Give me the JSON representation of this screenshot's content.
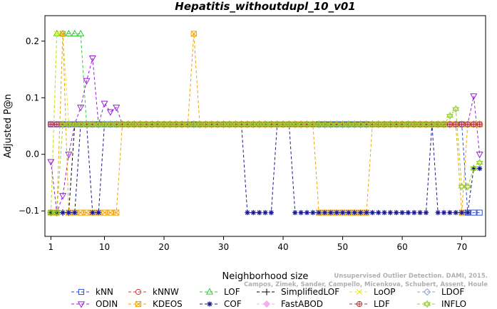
{
  "chart_data": {
    "type": "line",
    "title": "Hepatitis_withoutdupl_10_v01",
    "xlabel": "Neighborhood size",
    "ylabel": "Adjusted P@n",
    "xlim": [
      0,
      74
    ],
    "ylim": [
      -0.145,
      0.245
    ],
    "xticks": [
      1,
      10,
      20,
      30,
      40,
      50,
      60,
      70
    ],
    "yticks": [
      -0.1,
      0.0,
      0.1,
      0.2
    ],
    "ytick_labels": [
      "−0.1",
      "0.0",
      "0.1",
      "0.2"
    ],
    "grid": false,
    "legend_position": "bottom",
    "watermark": [
      "Campos, Zimek, Sander, Campello, Micenkova, Schubert, Assent, Houle",
      "Unsupervised Outlier Detection. DAMI, 2015."
    ],
    "series": [
      {
        "name": "kNN",
        "color": "#2b4bd6",
        "marker": "square",
        "points": [
          [
            1,
            0.053
          ],
          [
            2,
            0.053
          ],
          [
            3,
            0.053
          ],
          [
            4,
            0.053
          ],
          [
            5,
            0.053
          ],
          [
            10,
            0.053
          ],
          [
            20,
            0.053
          ],
          [
            30,
            0.053
          ],
          [
            40,
            0.053
          ],
          [
            50,
            0.053
          ],
          [
            60,
            0.053
          ],
          [
            69,
            0.053
          ],
          [
            70,
            0.053
          ],
          [
            71,
            -0.103
          ],
          [
            72,
            -0.103
          ],
          [
            73,
            -0.103
          ]
        ]
      },
      {
        "name": "kNNW",
        "color": "#d63a3a",
        "marker": "circle",
        "points": [
          [
            1,
            0.053
          ],
          [
            2,
            0.053
          ],
          [
            3,
            0.053
          ],
          [
            10,
            0.053
          ],
          [
            20,
            0.053
          ],
          [
            30,
            0.053
          ],
          [
            40,
            0.053
          ],
          [
            50,
            0.053
          ],
          [
            60,
            0.053
          ],
          [
            70,
            0.053
          ],
          [
            71,
            0.053
          ],
          [
            72,
            0.053
          ],
          [
            73,
            0.053
          ]
        ]
      },
      {
        "name": "LOF",
        "color": "#2ecc2e",
        "marker": "triangle-up",
        "points": [
          [
            1,
            -0.103
          ],
          [
            2,
            0.213
          ],
          [
            3,
            0.213
          ],
          [
            4,
            0.213
          ],
          [
            5,
            0.213
          ],
          [
            6,
            0.213
          ],
          [
            7,
            0.053
          ],
          [
            10,
            0.053
          ],
          [
            20,
            0.053
          ],
          [
            30,
            0.053
          ],
          [
            40,
            0.053
          ],
          [
            50,
            0.053
          ],
          [
            60,
            0.053
          ],
          [
            70,
            0.053
          ],
          [
            73,
            0.053
          ]
        ]
      },
      {
        "name": "SimplifiedLOF",
        "color": "#000000",
        "marker": "plus",
        "points": [
          [
            1,
            -0.103
          ],
          [
            2,
            -0.103
          ],
          [
            3,
            -0.103
          ],
          [
            4,
            -0.103
          ],
          [
            5,
            0.053
          ],
          [
            10,
            0.053
          ],
          [
            20,
            0.053
          ],
          [
            30,
            0.053
          ],
          [
            40,
            0.053
          ],
          [
            50,
            0.053
          ],
          [
            60,
            0.053
          ],
          [
            70,
            0.053
          ],
          [
            73,
            0.053
          ]
        ]
      },
      {
        "name": "LoOP",
        "color": "#e6e61a",
        "marker": "x",
        "points": [
          [
            1,
            -0.103
          ],
          [
            2,
            0.213
          ],
          [
            3,
            0.213
          ],
          [
            4,
            0.053
          ],
          [
            10,
            0.053
          ],
          [
            20,
            0.053
          ],
          [
            30,
            0.053
          ],
          [
            40,
            0.053
          ],
          [
            50,
            0.053
          ],
          [
            60,
            0.053
          ],
          [
            70,
            0.053
          ],
          [
            73,
            0.053
          ]
        ]
      },
      {
        "name": "LDOF",
        "color": "#8f9fd6",
        "marker": "diamond",
        "points": [
          [
            1,
            0.053
          ],
          [
            10,
            0.053
          ],
          [
            20,
            0.053
          ],
          [
            30,
            0.053
          ],
          [
            40,
            0.053
          ],
          [
            50,
            0.053
          ],
          [
            60,
            0.053
          ],
          [
            70,
            0.053
          ],
          [
            73,
            0.053
          ]
        ]
      },
      {
        "name": "ODIN",
        "color": "#9a1ed6",
        "marker": "triangle-down",
        "points": [
          [
            1,
            -0.013
          ],
          [
            2,
            -0.103
          ],
          [
            3,
            -0.073
          ],
          [
            4,
            0.0
          ],
          [
            5,
            0.053
          ],
          [
            6,
            0.083
          ],
          [
            7,
            0.13
          ],
          [
            8,
            0.17
          ],
          [
            9,
            0.053
          ],
          [
            10,
            0.09
          ],
          [
            11,
            0.075
          ],
          [
            12,
            0.083
          ],
          [
            13,
            0.053
          ],
          [
            20,
            0.053
          ],
          [
            30,
            0.053
          ],
          [
            40,
            0.053
          ],
          [
            50,
            0.053
          ],
          [
            60,
            0.053
          ],
          [
            69,
            0.053
          ],
          [
            70,
            0.053
          ],
          [
            71,
            0.053
          ],
          [
            72,
            0.103
          ],
          [
            73,
            0.0
          ]
        ]
      },
      {
        "name": "KDEOS",
        "color": "#f0a30a",
        "marker": "square-x",
        "points": [
          [
            1,
            -0.103
          ],
          [
            2,
            -0.103
          ],
          [
            3,
            0.213
          ],
          [
            4,
            -0.103
          ],
          [
            5,
            -0.103
          ],
          [
            6,
            -0.103
          ],
          [
            7,
            -0.103
          ],
          [
            8,
            -0.103
          ],
          [
            9,
            -0.103
          ],
          [
            10,
            -0.103
          ],
          [
            11,
            -0.103
          ],
          [
            12,
            -0.103
          ],
          [
            13,
            0.053
          ],
          [
            24,
            0.053
          ],
          [
            25,
            0.213
          ],
          [
            26,
            0.053
          ],
          [
            30,
            0.053
          ],
          [
            40,
            0.053
          ],
          [
            45,
            0.053
          ],
          [
            46,
            -0.103
          ],
          [
            47,
            -0.103
          ],
          [
            48,
            -0.103
          ],
          [
            49,
            -0.103
          ],
          [
            50,
            -0.103
          ],
          [
            51,
            -0.103
          ],
          [
            52,
            -0.103
          ],
          [
            53,
            -0.103
          ],
          [
            54,
            -0.103
          ],
          [
            55,
            0.053
          ],
          [
            60,
            0.053
          ],
          [
            69,
            0.053
          ],
          [
            70,
            -0.103
          ],
          [
            71,
            0.053
          ],
          [
            72,
            0.053
          ],
          [
            73,
            0.053
          ]
        ]
      },
      {
        "name": "COF",
        "color": "#1a1a8a",
        "marker": "asterisk",
        "points": [
          [
            1,
            -0.103
          ],
          [
            2,
            -0.103
          ],
          [
            3,
            -0.103
          ],
          [
            4,
            -0.103
          ],
          [
            5,
            -0.103
          ],
          [
            6,
            0.053
          ],
          [
            7,
            0.053
          ],
          [
            8,
            -0.103
          ],
          [
            9,
            -0.103
          ],
          [
            10,
            0.053
          ],
          [
            20,
            0.053
          ],
          [
            30,
            0.053
          ],
          [
            33,
            0.053
          ],
          [
            34,
            -0.103
          ],
          [
            35,
            -0.103
          ],
          [
            36,
            -0.103
          ],
          [
            37,
            -0.103
          ],
          [
            38,
            -0.103
          ],
          [
            39,
            0.053
          ],
          [
            40,
            0.053
          ],
          [
            41,
            0.053
          ],
          [
            42,
            -0.103
          ],
          [
            43,
            -0.103
          ],
          [
            44,
            -0.103
          ],
          [
            45,
            -0.103
          ],
          [
            46,
            -0.103
          ],
          [
            47,
            -0.103
          ],
          [
            48,
            -0.103
          ],
          [
            49,
            -0.103
          ],
          [
            50,
            -0.103
          ],
          [
            51,
            -0.103
          ],
          [
            52,
            -0.103
          ],
          [
            53,
            -0.103
          ],
          [
            54,
            -0.103
          ],
          [
            55,
            -0.103
          ],
          [
            56,
            -0.103
          ],
          [
            57,
            -0.103
          ],
          [
            58,
            -0.103
          ],
          [
            59,
            -0.103
          ],
          [
            60,
            -0.103
          ],
          [
            61,
            -0.103
          ],
          [
            62,
            -0.103
          ],
          [
            63,
            -0.103
          ],
          [
            64,
            -0.103
          ],
          [
            65,
            0.053
          ],
          [
            66,
            -0.103
          ],
          [
            67,
            -0.103
          ],
          [
            68,
            -0.103
          ],
          [
            69,
            -0.103
          ],
          [
            70,
            -0.103
          ],
          [
            71,
            -0.103
          ],
          [
            72,
            -0.025
          ],
          [
            73,
            -0.025
          ]
        ]
      },
      {
        "name": "FastABOD",
        "color": "#f0b0f0",
        "marker": "diamond-filled",
        "points": [
          [
            1,
            0.053
          ],
          [
            10,
            0.053
          ],
          [
            20,
            0.053
          ],
          [
            30,
            0.053
          ],
          [
            40,
            0.053
          ],
          [
            50,
            0.053
          ],
          [
            60,
            0.053
          ],
          [
            70,
            0.053
          ],
          [
            73,
            0.053
          ]
        ]
      },
      {
        "name": "LDF",
        "color": "#a83232",
        "marker": "circle-plus",
        "points": [
          [
            1,
            0.053
          ],
          [
            10,
            0.053
          ],
          [
            20,
            0.053
          ],
          [
            30,
            0.053
          ],
          [
            40,
            0.053
          ],
          [
            50,
            0.053
          ],
          [
            60,
            0.053
          ],
          [
            70,
            0.053
          ],
          [
            73,
            0.053
          ]
        ]
      },
      {
        "name": "INFLO",
        "color": "#9acd32",
        "marker": "star6",
        "points": [
          [
            1,
            -0.103
          ],
          [
            2,
            -0.103
          ],
          [
            3,
            0.053
          ],
          [
            10,
            0.053
          ],
          [
            20,
            0.053
          ],
          [
            30,
            0.053
          ],
          [
            40,
            0.053
          ],
          [
            50,
            0.053
          ],
          [
            60,
            0.053
          ],
          [
            67,
            0.053
          ],
          [
            68,
            0.068
          ],
          [
            69,
            0.08
          ],
          [
            70,
            -0.057
          ],
          [
            71,
            -0.057
          ],
          [
            72,
            -0.025
          ],
          [
            73,
            -0.015
          ]
        ]
      }
    ]
  }
}
